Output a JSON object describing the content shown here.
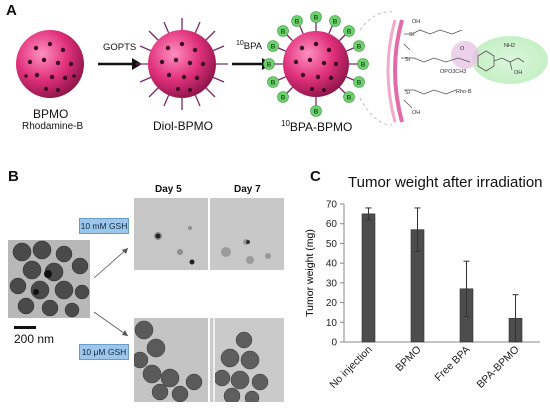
{
  "panel_a": {
    "letter": "A",
    "particles": [
      {
        "name": "BPMO",
        "sub": "Rhodamine-B"
      },
      {
        "name": "Diol-BPMO",
        "sub": ""
      },
      {
        "name_prefix": "10",
        "name": "BPA-BPMO",
        "sub": ""
      }
    ],
    "arrows": [
      {
        "label": "GOPTS"
      },
      {
        "label_prefix": "10",
        "label": "BPA"
      }
    ],
    "bead_label": "B",
    "chem_labels": [
      "OH",
      "OPO3CH3",
      "NH2",
      "OH",
      "O",
      "Rho-B",
      "OH"
    ]
  },
  "panel_b": {
    "letter": "B",
    "scale_bar": "200 nm",
    "day_labels": [
      "Day 5",
      "Day 7"
    ],
    "conditions": [
      "10 mM GSH",
      "10 μM GSH"
    ]
  },
  "panel_c": {
    "letter": "C",
    "chart_data": {
      "type": "bar",
      "title": "Tumor weight after irradiation",
      "ylabel": "Tumor weight (mg)",
      "xlabel": "",
      "categories": [
        "No injection",
        "BPMO",
        "Free BPA",
        "BPA-BPMO"
      ],
      "values": [
        65,
        57,
        27,
        12
      ],
      "errors": [
        3,
        11,
        14,
        12
      ],
      "ylim": [
        0,
        70
      ],
      "yticks": [
        0,
        10,
        20,
        30,
        40,
        50,
        60,
        70
      ],
      "bar_color": "#4d4d4d",
      "grid": false
    }
  },
  "colors": {
    "particle": "#e0307a",
    "bead": "#6fd070",
    "spike": "#7a2a6a"
  }
}
